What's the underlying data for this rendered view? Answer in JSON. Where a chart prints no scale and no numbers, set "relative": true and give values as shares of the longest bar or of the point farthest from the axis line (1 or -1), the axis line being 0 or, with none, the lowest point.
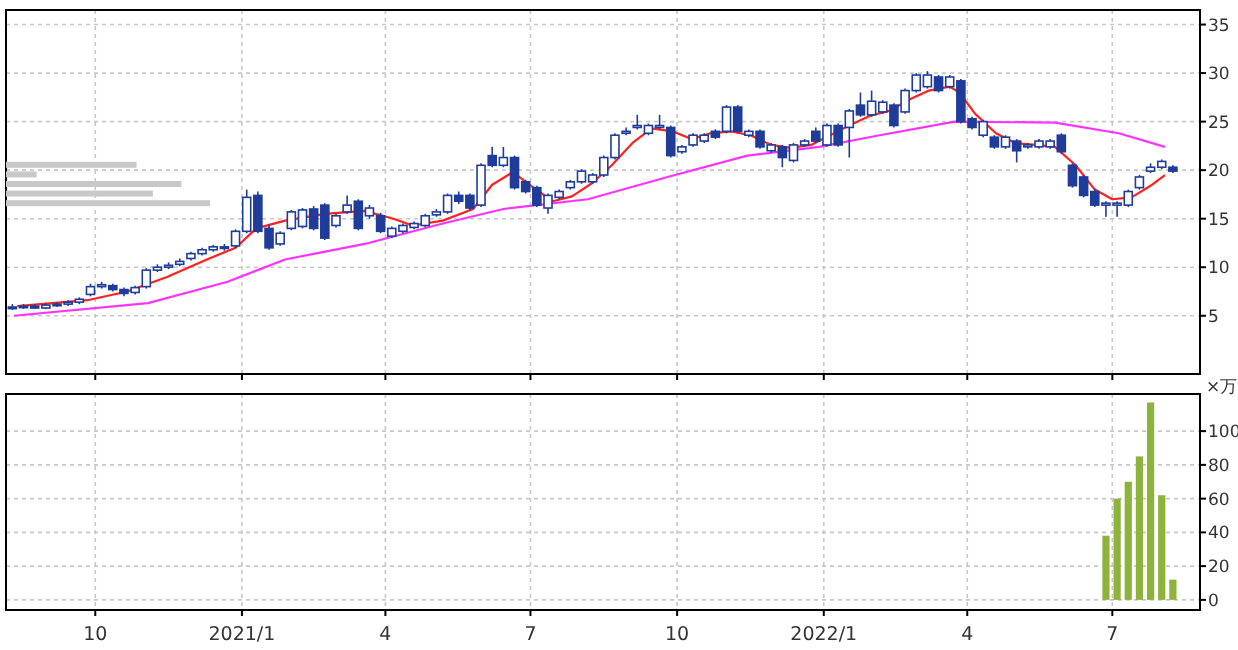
{
  "chart_data": [
    {
      "type": "candlestick",
      "color": "#1f3c99",
      "grid": true,
      "tick_labels": "y",
      "xlim": [
        "2020-08-06",
        "2022-08-25"
      ],
      "ylim": [
        -1,
        36.5
      ],
      "yticks": [
        5,
        10,
        15,
        20,
        25,
        30,
        35
      ],
      "xticks": [
        {
          "value": "2020-10-01",
          "label": null
        },
        {
          "value": "2021-01-01",
          "label": null
        },
        {
          "value": "2021-04-01",
          "label": null
        },
        {
          "value": "2021-07-01",
          "label": null
        },
        {
          "value": "2021-10-01",
          "label": null
        },
        {
          "value": "2022-01-01",
          "label": null
        },
        {
          "value": "2022-04-01",
          "label": null
        },
        {
          "value": "2022-07-01",
          "label": null
        }
      ],
      "x": [
        "2020-08-10",
        "2020-08-17",
        "2020-08-24",
        "2020-08-31",
        "2020-09-07",
        "2020-09-14",
        "2020-09-21",
        "2020-09-28",
        "2020-10-05",
        "2020-10-12",
        "2020-10-19",
        "2020-10-26",
        "2020-11-02",
        "2020-11-09",
        "2020-11-16",
        "2020-11-23",
        "2020-11-30",
        "2020-12-07",
        "2020-12-14",
        "2020-12-21",
        "2020-12-28",
        "2021-01-04",
        "2021-01-11",
        "2021-01-18",
        "2021-01-25",
        "2021-02-01",
        "2021-02-08",
        "2021-02-15",
        "2021-02-22",
        "2021-03-01",
        "2021-03-08",
        "2021-03-15",
        "2021-03-22",
        "2021-03-29",
        "2021-04-05",
        "2021-04-12",
        "2021-04-19",
        "2021-04-26",
        "2021-05-03",
        "2021-05-10",
        "2021-05-17",
        "2021-05-24",
        "2021-05-31",
        "2021-06-07",
        "2021-06-14",
        "2021-06-21",
        "2021-06-28",
        "2021-07-05",
        "2021-07-12",
        "2021-07-19",
        "2021-07-26",
        "2021-08-02",
        "2021-08-09",
        "2021-08-16",
        "2021-08-23",
        "2021-08-30",
        "2021-09-06",
        "2021-09-13",
        "2021-09-20",
        "2021-09-27",
        "2021-10-04",
        "2021-10-11",
        "2021-10-18",
        "2021-10-25",
        "2021-11-01",
        "2021-11-08",
        "2021-11-15",
        "2021-11-22",
        "2021-11-29",
        "2021-12-06",
        "2021-12-13",
        "2021-12-20",
        "2021-12-27",
        "2022-01-03",
        "2022-01-10",
        "2022-01-17",
        "2022-01-24",
        "2022-01-31",
        "2022-02-07",
        "2022-02-14",
        "2022-02-21",
        "2022-02-28",
        "2022-03-07",
        "2022-03-14",
        "2022-03-21",
        "2022-03-28",
        "2022-04-04",
        "2022-04-11",
        "2022-04-18",
        "2022-04-25",
        "2022-05-02",
        "2022-05-09",
        "2022-05-16",
        "2022-05-23",
        "2022-05-30",
        "2022-06-06",
        "2022-06-13",
        "2022-06-20",
        "2022-06-27",
        "2022-07-04",
        "2022-07-11",
        "2022-07-18",
        "2022-07-25",
        "2022-08-01",
        "2022-08-08"
      ],
      "ohlc": [
        [
          5.8,
          6.2,
          5.6,
          5.9
        ],
        [
          5.9,
          6.2,
          5.7,
          6.0
        ],
        [
          6.0,
          6.2,
          5.7,
          5.8
        ],
        [
          5.8,
          6.3,
          5.7,
          6.1
        ],
        [
          6.1,
          6.4,
          5.9,
          6.2
        ],
        [
          6.2,
          6.6,
          6.0,
          6.4
        ],
        [
          6.4,
          6.9,
          6.2,
          6.7
        ],
        [
          7.2,
          8.3,
          7.0,
          8.0
        ],
        [
          8.0,
          8.5,
          7.8,
          8.2
        ],
        [
          8.1,
          8.3,
          7.5,
          7.7
        ],
        [
          7.7,
          7.9,
          7.0,
          7.3
        ],
        [
          7.4,
          8.1,
          7.2,
          7.9
        ],
        [
          8.0,
          9.9,
          7.8,
          9.7
        ],
        [
          9.7,
          10.3,
          9.5,
          10.0
        ],
        [
          10.0,
          10.5,
          9.8,
          10.2
        ],
        [
          10.3,
          10.9,
          10.1,
          10.6
        ],
        [
          10.9,
          11.6,
          10.7,
          11.4
        ],
        [
          11.4,
          12.0,
          11.2,
          11.8
        ],
        [
          11.8,
          12.3,
          11.6,
          12.1
        ],
        [
          12.0,
          12.4,
          11.7,
          12.1
        ],
        [
          12.2,
          13.9,
          12.0,
          13.7
        ],
        [
          13.7,
          18.0,
          13.5,
          17.2
        ],
        [
          17.4,
          17.8,
          13.5,
          13.7
        ],
        [
          14.0,
          14.4,
          11.8,
          12.0
        ],
        [
          12.4,
          13.7,
          12.2,
          13.5
        ],
        [
          14.0,
          15.9,
          13.8,
          15.7
        ],
        [
          14.2,
          16.1,
          14.0,
          15.9
        ],
        [
          16.0,
          16.3,
          13.8,
          14.0
        ],
        [
          16.4,
          16.6,
          12.8,
          13.0
        ],
        [
          14.3,
          15.5,
          14.1,
          15.3
        ],
        [
          15.7,
          17.4,
          15.5,
          16.4
        ],
        [
          16.8,
          17.0,
          13.8,
          14.0
        ],
        [
          15.3,
          16.4,
          15.0,
          16.1
        ],
        [
          15.3,
          15.6,
          13.5,
          13.7
        ],
        [
          13.2,
          14.2,
          13.0,
          14.0
        ],
        [
          13.7,
          14.5,
          13.5,
          14.3
        ],
        [
          14.1,
          14.7,
          13.9,
          14.5
        ],
        [
          14.3,
          15.5,
          14.1,
          15.3
        ],
        [
          15.4,
          16.0,
          15.2,
          15.7
        ],
        [
          15.7,
          17.6,
          15.5,
          17.4
        ],
        [
          17.4,
          17.8,
          16.5,
          16.8
        ],
        [
          17.4,
          17.6,
          15.9,
          16.1
        ],
        [
          16.4,
          20.7,
          16.2,
          20.5
        ],
        [
          21.5,
          22.4,
          20.3,
          20.5
        ],
        [
          20.5,
          22.4,
          20.3,
          21.3
        ],
        [
          21.3,
          21.5,
          18.0,
          18.2
        ],
        [
          18.8,
          19.0,
          17.6,
          17.8
        ],
        [
          18.2,
          18.4,
          16.2,
          16.4
        ],
        [
          16.1,
          17.6,
          15.5,
          17.4
        ],
        [
          17.2,
          18.0,
          17.0,
          17.8
        ],
        [
          18.2,
          19.0,
          18.0,
          18.8
        ],
        [
          18.8,
          20.1,
          18.6,
          19.9
        ],
        [
          18.8,
          19.7,
          18.6,
          19.5
        ],
        [
          19.5,
          21.5,
          19.3,
          21.3
        ],
        [
          21.3,
          23.8,
          21.1,
          23.6
        ],
        [
          23.8,
          24.4,
          23.6,
          24.0
        ],
        [
          24.4,
          25.7,
          24.2,
          24.6
        ],
        [
          23.8,
          24.8,
          23.6,
          24.6
        ],
        [
          24.4,
          25.7,
          24.2,
          24.6
        ],
        [
          24.4,
          24.6,
          21.3,
          21.5
        ],
        [
          21.9,
          22.6,
          21.7,
          22.4
        ],
        [
          22.6,
          23.8,
          22.4,
          23.6
        ],
        [
          23.0,
          23.8,
          22.8,
          23.6
        ],
        [
          24.0,
          24.2,
          23.2,
          23.4
        ],
        [
          24.0,
          26.7,
          23.8,
          26.5
        ],
        [
          26.5,
          26.7,
          23.8,
          24.0
        ],
        [
          23.6,
          24.2,
          23.4,
          24.0
        ],
        [
          24.0,
          24.2,
          22.2,
          22.4
        ],
        [
          22.0,
          22.8,
          21.8,
          22.6
        ],
        [
          22.4,
          22.6,
          20.3,
          21.3
        ],
        [
          21.0,
          22.8,
          20.8,
          22.6
        ],
        [
          22.6,
          23.2,
          22.4,
          23.0
        ],
        [
          24.0,
          24.4,
          22.8,
          23.0
        ],
        [
          22.6,
          24.8,
          22.4,
          24.6
        ],
        [
          24.6,
          24.8,
          22.4,
          22.6
        ],
        [
          24.4,
          26.3,
          21.3,
          26.1
        ],
        [
          26.7,
          28.0,
          25.5,
          25.7
        ],
        [
          25.7,
          28.2,
          25.5,
          27.1
        ],
        [
          26.0,
          27.2,
          25.8,
          27.0
        ],
        [
          26.7,
          26.9,
          24.4,
          24.6
        ],
        [
          26.0,
          28.4,
          25.8,
          28.2
        ],
        [
          28.2,
          30.0,
          28.0,
          29.8
        ],
        [
          28.6,
          30.2,
          28.4,
          29.8
        ],
        [
          29.6,
          29.8,
          28.0,
          28.2
        ],
        [
          28.6,
          29.8,
          28.4,
          29.6
        ],
        [
          29.2,
          29.4,
          24.8,
          25.0
        ],
        [
          25.3,
          25.5,
          24.2,
          24.4
        ],
        [
          23.6,
          25.2,
          23.4,
          25.0
        ],
        [
          23.4,
          23.6,
          22.2,
          22.4
        ],
        [
          22.4,
          23.6,
          22.2,
          23.4
        ],
        [
          23.0,
          23.2,
          20.8,
          22.0
        ],
        [
          22.4,
          22.8,
          22.2,
          22.6
        ],
        [
          22.4,
          23.2,
          22.2,
          23.0
        ],
        [
          22.4,
          23.2,
          22.2,
          23.0
        ],
        [
          23.6,
          23.8,
          21.7,
          21.9
        ],
        [
          20.5,
          20.7,
          18.2,
          18.4
        ],
        [
          19.3,
          19.5,
          17.2,
          17.4
        ],
        [
          17.8,
          18.0,
          16.2,
          16.4
        ],
        [
          16.4,
          16.8,
          15.2,
          16.6
        ],
        [
          16.4,
          16.8,
          15.2,
          16.6
        ],
        [
          16.4,
          18.0,
          16.2,
          17.8
        ],
        [
          18.2,
          19.5,
          18.0,
          19.3
        ],
        [
          19.9,
          20.7,
          19.7,
          20.3
        ],
        [
          20.3,
          21.1,
          20.1,
          20.9
        ],
        [
          20.3,
          20.5,
          19.7,
          19.9
        ]
      ],
      "series": [
        {
          "type": "line",
          "color": "#ff2020",
          "x": [
            "2020-08-13",
            "2020-09-26",
            "2020-10-21",
            "2020-11-15",
            "2020-12-10",
            "2020-12-28",
            "2021-01-10",
            "2021-01-28",
            "2021-02-22",
            "2021-03-19",
            "2021-04-06",
            "2021-04-18",
            "2021-05-07",
            "2021-05-26",
            "2021-06-07",
            "2021-06-20",
            "2021-07-02",
            "2021-07-15",
            "2021-07-27",
            "2021-08-09",
            "2021-08-21",
            "2021-09-03",
            "2021-09-15",
            "2021-09-28",
            "2021-10-10",
            "2021-10-22",
            "2021-11-04",
            "2021-11-16",
            "2021-11-29",
            "2021-12-11",
            "2021-12-24",
            "2022-01-05",
            "2022-01-17",
            "2022-01-30",
            "2022-02-11",
            "2022-02-24",
            "2022-03-08",
            "2022-03-21",
            "2022-03-27",
            "2022-04-06",
            "2022-04-19",
            "2022-05-01",
            "2022-05-14",
            "2022-05-26",
            "2022-06-08",
            "2022-06-20",
            "2022-07-01",
            "2022-07-13",
            "2022-07-26",
            "2022-08-03"
          ],
          "values": [
            6.0,
            6.6,
            7.5,
            9.0,
            10.8,
            12.0,
            14.0,
            14.8,
            15.5,
            15.8,
            15.0,
            14.3,
            14.8,
            16.0,
            18.5,
            19.8,
            18.3,
            16.8,
            17.3,
            18.7,
            20.5,
            22.8,
            24.3,
            24.0,
            23.2,
            23.8,
            24.0,
            23.6,
            22.6,
            22.3,
            22.6,
            23.6,
            24.6,
            25.6,
            26.1,
            27.3,
            28.2,
            28.6,
            28.0,
            25.8,
            23.8,
            22.8,
            22.6,
            22.4,
            20.5,
            18.0,
            17.0,
            17.2,
            18.5,
            19.5
          ]
        },
        {
          "type": "line",
          "color": "#ff33ff",
          "x": [
            "2020-08-11",
            "2020-11-03",
            "2020-12-23",
            "2021-01-28",
            "2021-03-19",
            "2021-05-07",
            "2021-06-14",
            "2021-08-06",
            "2021-09-25",
            "2021-11-14",
            "2021-12-29",
            "2022-02-05",
            "2022-03-24",
            "2022-05-26",
            "2022-07-05",
            "2022-08-03"
          ],
          "values": [
            5.0,
            6.3,
            8.5,
            10.8,
            12.4,
            14.5,
            16.0,
            17.0,
            19.3,
            21.5,
            22.4,
            23.6,
            25.0,
            24.9,
            23.8,
            22.4
          ]
        }
      ]
    },
    {
      "type": "bar",
      "orientation": "horizontal",
      "relative": true,
      "color": "#c8c8c8",
      "categories": [
        null,
        null,
        null,
        null,
        null
      ],
      "values": [
        0.64,
        0.15,
        0.86,
        0.72,
        1
      ]
    },
    {
      "type": "bar",
      "color": "#8db33a",
      "grid": true,
      "ylabel": "×万",
      "xlim": [
        "2020-08-06",
        "2022-08-25"
      ],
      "ylim": [
        -6,
        122
      ],
      "yticks": [
        0,
        20,
        40,
        60,
        80,
        100
      ],
      "xticks": [
        {
          "value": "2020-10-01",
          "label": "10"
        },
        {
          "value": "2021-01-01",
          "label": "2021/1"
        },
        {
          "value": "2021-04-01",
          "label": "4"
        },
        {
          "value": "2021-07-01",
          "label": "7"
        },
        {
          "value": "2021-10-01",
          "label": "10"
        },
        {
          "value": "2022-01-01",
          "label": "2022/1"
        },
        {
          "value": "2022-04-01",
          "label": "4"
        },
        {
          "value": "2022-07-01",
          "label": "7"
        }
      ],
      "x": [
        "2022-06-27",
        "2022-07-04",
        "2022-07-11",
        "2022-07-18",
        "2022-07-25",
        "2022-08-01",
        "2022-08-08"
      ],
      "values": [
        38,
        60,
        70,
        85,
        117,
        62,
        12
      ]
    }
  ]
}
